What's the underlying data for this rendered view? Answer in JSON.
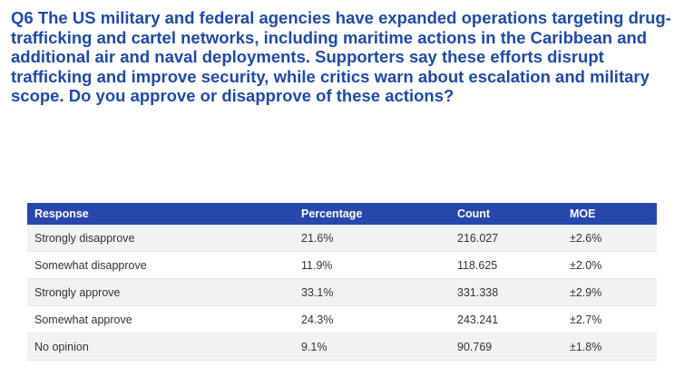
{
  "question": {
    "text": "Q6 The US military and federal agencies have expanded operations targeting drug-trafficking and cartel networks, including maritime actions in the Caribbean and additional air and naval deployments. Supporters say these efforts disrupt trafficking and improve security, while critics warn about escalation and military scope. Do you approve or disapprove of these actions?"
  },
  "table": {
    "headers": [
      "Response",
      "Percentage",
      "Count",
      "MOE"
    ],
    "rows": [
      {
        "response": "Strongly disapprove",
        "percentage": "21.6%",
        "count": "216.027",
        "moe": "±2.6%"
      },
      {
        "response": "Somewhat disapprove",
        "percentage": "11.9%",
        "count": "118.625",
        "moe": "±2.0%"
      },
      {
        "response": "Strongly approve",
        "percentage": "33.1%",
        "count": "331.338",
        "moe": "±2.9%"
      },
      {
        "response": "Somewhat approve",
        "percentage": "24.3%",
        "count": "243.241",
        "moe": "±2.7%"
      },
      {
        "response": "No opinion",
        "percentage": "9.1%",
        "count": "90.769",
        "moe": "±1.8%"
      }
    ]
  },
  "colors": {
    "title": "#1f4aa8",
    "header_bg": "#2747ad",
    "header_text": "#ffffff",
    "row_alt_bg": "#f2f2f2",
    "cell_text": "#333333"
  }
}
